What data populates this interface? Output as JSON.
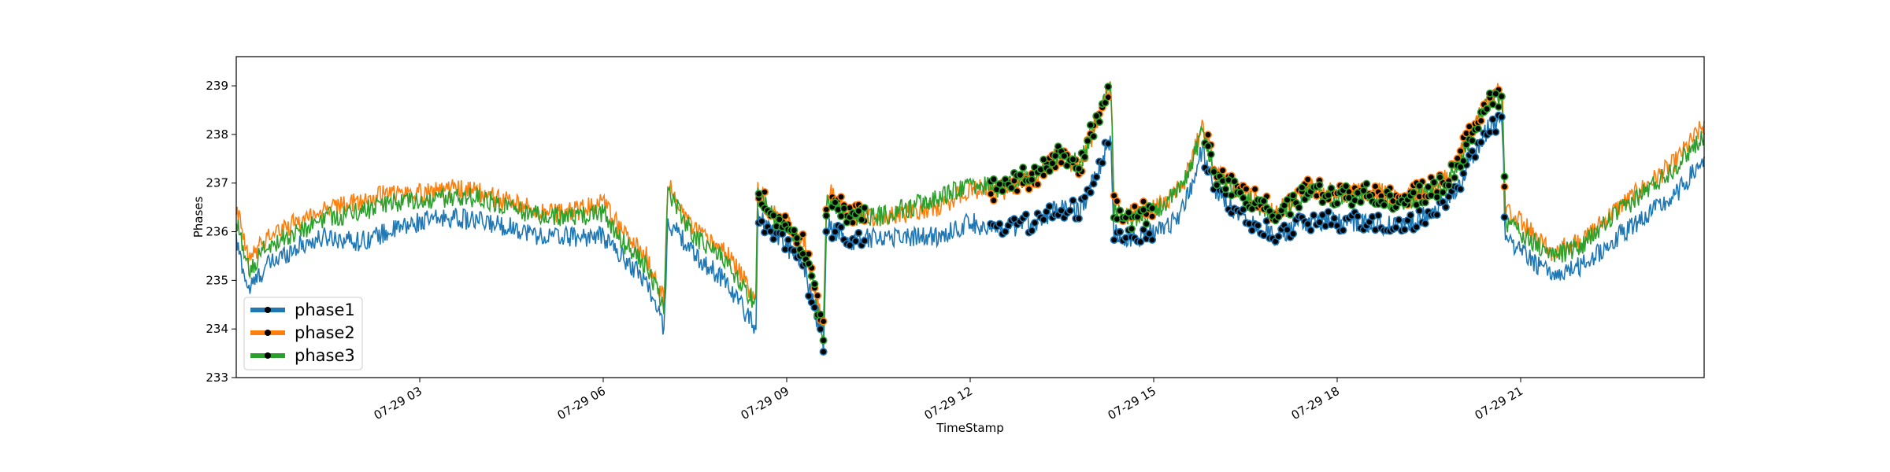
{
  "chart_data": {
    "type": "line",
    "title": "",
    "xlabel": "TimeStamp",
    "ylabel": "Phases",
    "x_ticks": [
      "07-29 03",
      "07-29 06",
      "07-29 09",
      "07-29 12",
      "07-29 15",
      "07-29 18",
      "07-29 21"
    ],
    "x_tick_hours": [
      3,
      6,
      9,
      12,
      15,
      18,
      21
    ],
    "xlim_hours": [
      0,
      24
    ],
    "ylim": [
      233,
      239.6
    ],
    "y_ticks": [
      233,
      234,
      235,
      236,
      237,
      238,
      239
    ],
    "grid": false,
    "legend": "lower-left",
    "marker_note": "black circle markers shown on highlighted periods",
    "series": [
      {
        "name": "phase1",
        "color": "#1f77b4",
        "hours": [
          0.0,
          0.2,
          0.5,
          1.0,
          1.5,
          2.0,
          2.5,
          3.0,
          3.5,
          4.0,
          4.5,
          5.0,
          5.5,
          6.0,
          6.3,
          6.7,
          7.0,
          7.05,
          7.2,
          7.5,
          8.0,
          8.5,
          8.52,
          8.8,
          9.0,
          9.3,
          9.6,
          9.65,
          9.7,
          10.0,
          10.5,
          11.0,
          11.5,
          12.0,
          12.5,
          13.0,
          13.5,
          13.8,
          14.0,
          14.3,
          14.35,
          14.5,
          15.0,
          15.3,
          15.5,
          15.8,
          16.0,
          16.5,
          17.0,
          17.5,
          18.0,
          18.5,
          19.0,
          19.5,
          19.8,
          20.0,
          20.5,
          20.7,
          20.75,
          21.0,
          21.5,
          22.0,
          22.5,
          23.0,
          23.5,
          24.0
        ],
        "values": [
          235.8,
          234.8,
          235.3,
          235.7,
          235.9,
          235.8,
          236.0,
          236.2,
          236.3,
          236.2,
          236.1,
          235.9,
          235.9,
          235.9,
          235.5,
          235.0,
          234.0,
          236.2,
          236.0,
          235.5,
          235.0,
          234.0,
          236.3,
          236.0,
          235.7,
          235.2,
          233.6,
          236.0,
          236.1,
          235.8,
          235.9,
          235.9,
          235.9,
          236.2,
          236.0,
          236.2,
          236.5,
          236.4,
          237.0,
          237.9,
          236.0,
          235.8,
          236.0,
          236.2,
          236.5,
          237.7,
          236.8,
          236.3,
          235.9,
          236.2,
          236.2,
          236.2,
          236.1,
          236.4,
          236.6,
          237.0,
          238.2,
          238.3,
          235.8,
          235.6,
          235.1,
          235.3,
          235.8,
          236.3,
          236.7,
          237.5
        ]
      },
      {
        "name": "phase2",
        "color": "#ff7f0e",
        "hours": [
          0.0,
          0.2,
          0.5,
          1.0,
          1.5,
          2.0,
          2.5,
          3.0,
          3.5,
          4.0,
          4.5,
          5.0,
          5.5,
          6.0,
          6.3,
          6.7,
          7.0,
          7.05,
          7.2,
          7.5,
          8.0,
          8.5,
          8.52,
          8.8,
          9.0,
          9.3,
          9.6,
          9.65,
          9.7,
          10.0,
          10.5,
          11.0,
          11.5,
          12.0,
          12.5,
          13.0,
          13.5,
          13.8,
          14.0,
          14.3,
          14.35,
          14.5,
          15.0,
          15.3,
          15.5,
          15.8,
          16.0,
          16.5,
          17.0,
          17.5,
          18.0,
          18.5,
          19.0,
          19.5,
          19.8,
          20.0,
          20.5,
          20.7,
          20.75,
          21.0,
          21.5,
          22.0,
          22.5,
          23.0,
          23.5,
          24.0
        ],
        "values": [
          236.5,
          235.4,
          235.9,
          236.2,
          236.5,
          236.6,
          236.8,
          236.8,
          236.9,
          236.8,
          236.6,
          236.4,
          236.4,
          236.6,
          236.0,
          235.5,
          234.6,
          237.0,
          236.6,
          236.0,
          235.6,
          234.6,
          236.9,
          236.4,
          236.2,
          235.7,
          234.0,
          236.7,
          236.8,
          236.4,
          236.3,
          236.4,
          236.5,
          236.9,
          236.8,
          237.1,
          237.5,
          237.3,
          238.0,
          239.1,
          236.6,
          236.3,
          236.5,
          236.7,
          237.0,
          238.2,
          237.3,
          236.8,
          236.4,
          236.9,
          236.8,
          236.9,
          236.7,
          236.9,
          237.1,
          237.6,
          238.8,
          238.9,
          236.4,
          236.2,
          235.6,
          235.8,
          236.4,
          236.9,
          237.4,
          238.2
        ]
      },
      {
        "name": "phase3",
        "color": "#2ca02c",
        "hours": [
          0.0,
          0.2,
          0.5,
          1.0,
          1.5,
          2.0,
          2.5,
          3.0,
          3.5,
          4.0,
          4.5,
          5.0,
          5.5,
          6.0,
          6.3,
          6.7,
          7.0,
          7.05,
          7.2,
          7.5,
          8.0,
          8.5,
          8.52,
          8.8,
          9.0,
          9.3,
          9.6,
          9.65,
          9.7,
          10.0,
          10.5,
          11.0,
          11.5,
          12.0,
          12.5,
          13.0,
          13.5,
          13.8,
          14.0,
          14.3,
          14.35,
          14.5,
          15.0,
          15.3,
          15.5,
          15.8,
          16.0,
          16.5,
          17.0,
          17.5,
          18.0,
          18.5,
          19.0,
          19.5,
          19.8,
          20.0,
          20.5,
          20.7,
          20.75,
          21.0,
          21.5,
          22.0,
          22.5,
          23.0,
          23.5,
          24.0
        ],
        "values": [
          236.2,
          235.2,
          235.7,
          236.0,
          236.3,
          236.4,
          236.6,
          236.6,
          236.7,
          236.7,
          236.5,
          236.3,
          236.3,
          236.4,
          235.8,
          235.3,
          234.4,
          236.9,
          236.5,
          235.9,
          235.4,
          234.5,
          236.8,
          236.3,
          236.1,
          235.6,
          233.9,
          236.6,
          236.7,
          236.3,
          236.3,
          236.5,
          236.7,
          237.0,
          236.9,
          237.2,
          237.6,
          237.4,
          238.1,
          239.0,
          236.5,
          236.2,
          236.4,
          236.7,
          237.0,
          238.1,
          237.2,
          236.7,
          236.3,
          236.8,
          236.7,
          236.8,
          236.6,
          236.8,
          237.0,
          237.5,
          238.7,
          238.8,
          236.2,
          236.0,
          235.5,
          235.7,
          236.3,
          236.8,
          237.3,
          238.0
        ]
      }
    ],
    "marker_ranges_hours": [
      [
        8.5,
        9.65
      ],
      [
        9.7,
        10.3
      ],
      [
        12.3,
        14.3
      ],
      [
        14.35,
        15.0
      ],
      [
        15.8,
        20.75
      ]
    ]
  }
}
